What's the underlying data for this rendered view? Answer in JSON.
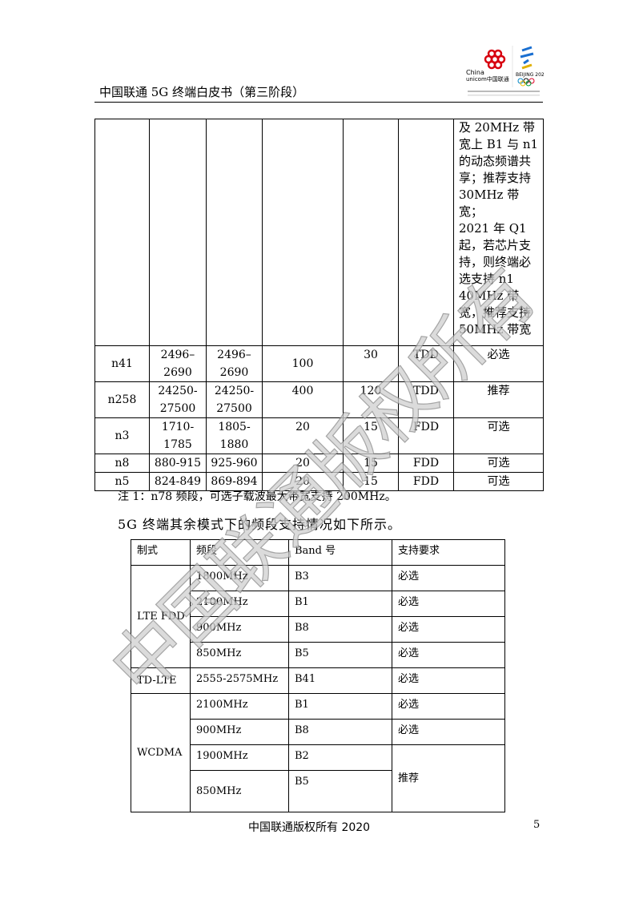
{
  "header": {
    "title": "中国联通 5G 终端白皮书（第三阶段）",
    "logo_text": "China unicom中国联通"
  },
  "table1": {
    "continued_note": [
      "及 20MHz 带",
      "宽上 B1 与 n1",
      "的动态频谱共",
      "享；推荐支持",
      "30MHz 带",
      "宽；",
      "2021 年 Q1",
      "起，若芯片支",
      "持，则终端必",
      "选支持 n1",
      "40MHz 带",
      "宽，推荐支持",
      "50MHz 带宽"
    ],
    "rows": [
      [
        "n41",
        "2496–\n2690",
        "2496–\n2690",
        "100",
        "30",
        "TDD",
        "必选"
      ],
      [
        "n258",
        "24250-\n27500",
        "24250-\n27500",
        "400",
        "120",
        "TDD",
        "推荐"
      ],
      [
        "n3",
        "1710-\n1785",
        "1805-\n1880",
        "20",
        "15",
        "FDD",
        "可选"
      ],
      [
        "n8",
        "880-915",
        "925-960",
        "20",
        "15",
        "FDD",
        "可选"
      ],
      [
        "n5",
        "824-849",
        "869-894",
        "20",
        "15",
        "FDD",
        "可选"
      ]
    ]
  },
  "note": "注 1：n78 频段，可选子载波最大带宽支持 200MHz。",
  "paragraph": "5G 终端其余模式下的频段支持情况如下所示。",
  "table2": {
    "headers": [
      "制式",
      "频段",
      "Band 号",
      "支持要求"
    ],
    "groups": [
      {
        "mode": "LTE FDD",
        "rows": [
          [
            "1800MHz",
            "B3",
            "必选"
          ],
          [
            "2100MHz",
            "B1",
            "必选"
          ],
          [
            "900MHz",
            "B8",
            "必选"
          ],
          [
            "850MHz",
            "B5",
            "必选"
          ]
        ]
      },
      {
        "mode": "TD-LTE",
        "rows": [
          [
            "2555-2575MHz",
            "B41",
            "必选"
          ]
        ]
      },
      {
        "mode": "WCDMA",
        "rows": [
          [
            "2100MHz",
            "B1",
            "必选"
          ],
          [
            "900MHz",
            "B8",
            "必选"
          ],
          [
            "1900MHz",
            "B2",
            ""
          ],
          [
            "850MHz",
            "B5",
            ""
          ]
        ],
        "merged_req": "推荐"
      }
    ]
  },
  "footer": {
    "text": "中国联通版权所有 2020",
    "page": "5"
  },
  "watermark": "中国联通版权所有"
}
